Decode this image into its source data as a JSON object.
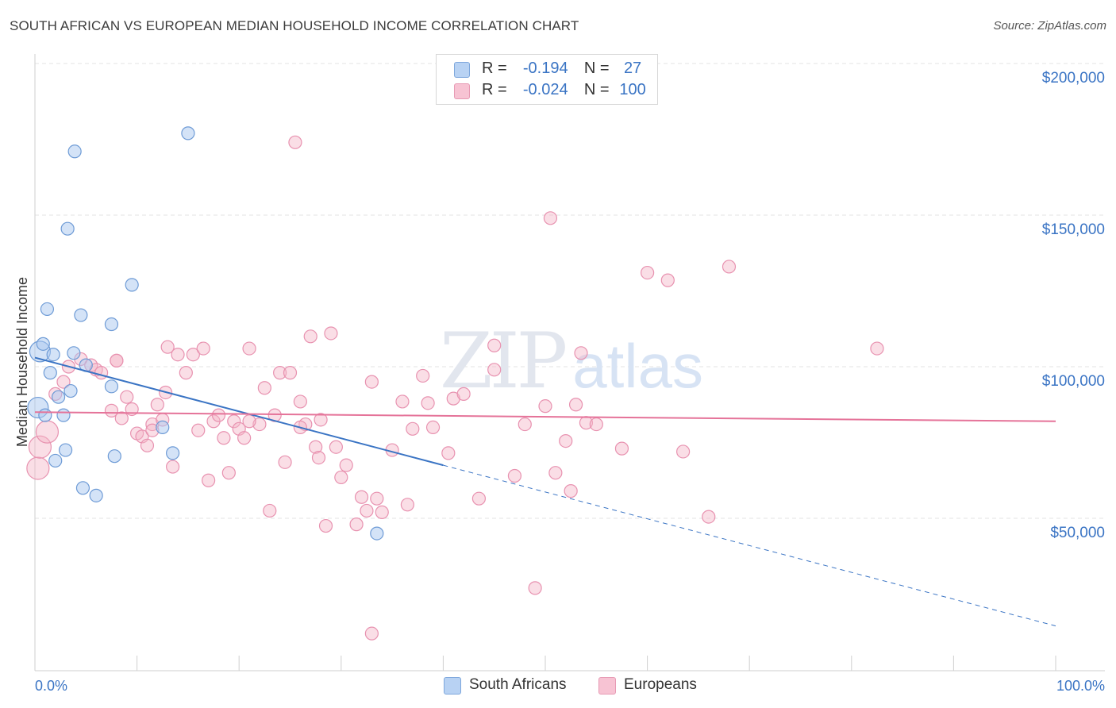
{
  "title": "SOUTH AFRICAN VS EUROPEAN MEDIAN HOUSEHOLD INCOME CORRELATION CHART",
  "source": "Source: ZipAtlas.com",
  "legend": {
    "rows": [
      {
        "r_label": "R =",
        "r_value": "-0.194",
        "n_label": "N =",
        "n_value": "27"
      },
      {
        "r_label": "R =",
        "r_value": "-0.024",
        "n_label": "N =",
        "n_value": "100"
      }
    ]
  },
  "bottom_legend": {
    "south_africans": "South Africans",
    "europeans": "Europeans"
  },
  "colors": {
    "blue": "#3a74c4",
    "blue_fill": "#a9c8f0",
    "pink": "#e57399",
    "pink_fill": "#f5b5c8"
  },
  "chart_data": {
    "type": "scatter",
    "title": "SOUTH AFRICAN VS EUROPEAN MEDIAN HOUSEHOLD INCOME CORRELATION CHART",
    "xlabel": "",
    "ylabel": "Median Household Income",
    "xlim": [
      0,
      100
    ],
    "ylim": [
      8000,
      210000
    ],
    "x_tick_labels": [
      "0.0%",
      "100.0%"
    ],
    "y_ticks": [
      50000,
      100000,
      150000,
      200000
    ],
    "y_tick_labels": [
      "$50,000",
      "$100,000",
      "$150,000",
      "$200,000"
    ],
    "watermark": "ZIPatlas",
    "series": [
      {
        "name": "South Africans",
        "r": -0.194,
        "n": 27,
        "points": [
          [
            0.3,
            86500
          ],
          [
            0.5,
            105000
          ],
          [
            0.8,
            107500
          ],
          [
            1.2,
            119000
          ],
          [
            1.5,
            98000
          ],
          [
            1.8,
            104000
          ],
          [
            2.0,
            69000
          ],
          [
            2.3,
            90000
          ],
          [
            2.8,
            84000
          ],
          [
            3.0,
            72500
          ],
          [
            3.2,
            145500
          ],
          [
            3.5,
            92000
          ],
          [
            3.8,
            104500
          ],
          [
            3.9,
            171000
          ],
          [
            4.5,
            117000
          ],
          [
            4.7,
            60000
          ],
          [
            5.0,
            100500
          ],
          [
            6.0,
            57500
          ],
          [
            7.5,
            114000
          ],
          [
            7.5,
            93500
          ],
          [
            7.8,
            70500
          ],
          [
            9.5,
            127000
          ],
          [
            12.5,
            80000
          ],
          [
            13.5,
            71500
          ],
          [
            15.0,
            177000
          ],
          [
            33.5,
            45000
          ],
          [
            1.0,
            84000
          ]
        ],
        "trend": {
          "x0": 0,
          "y0": 103000,
          "x1": 40,
          "y1": 67500,
          "dashed_to_x": 100,
          "dashed_to_y": 14500
        }
      },
      {
        "name": "Europeans",
        "r": -0.024,
        "n": 100,
        "points": [
          [
            0.3,
            66500
          ],
          [
            0.5,
            73500
          ],
          [
            1.2,
            78500
          ],
          [
            2.0,
            91000
          ],
          [
            2.8,
            95000
          ],
          [
            3.3,
            100000
          ],
          [
            4.5,
            102500
          ],
          [
            5.5,
            100500
          ],
          [
            6.0,
            99000
          ],
          [
            6.5,
            98000
          ],
          [
            7.5,
            85500
          ],
          [
            8.0,
            102000
          ],
          [
            8.5,
            83000
          ],
          [
            9.0,
            90000
          ],
          [
            9.5,
            86000
          ],
          [
            10.0,
            78000
          ],
          [
            10.5,
            77000
          ],
          [
            11.0,
            74000
          ],
          [
            11.5,
            81000
          ],
          [
            12.0,
            87500
          ],
          [
            12.5,
            82500
          ],
          [
            12.8,
            91500
          ],
          [
            13.0,
            106500
          ],
          [
            13.5,
            67000
          ],
          [
            14.0,
            104000
          ],
          [
            14.8,
            98000
          ],
          [
            15.5,
            104000
          ],
          [
            16.0,
            79000
          ],
          [
            16.5,
            106000
          ],
          [
            17.0,
            62500
          ],
          [
            17.5,
            82000
          ],
          [
            18.0,
            84000
          ],
          [
            18.5,
            76500
          ],
          [
            19.0,
            65000
          ],
          [
            19.5,
            82000
          ],
          [
            20.0,
            79500
          ],
          [
            20.5,
            76500
          ],
          [
            21.0,
            106000
          ],
          [
            22.0,
            81000
          ],
          [
            22.5,
            93000
          ],
          [
            23.0,
            52500
          ],
          [
            23.5,
            84000
          ],
          [
            24.0,
            98000
          ],
          [
            24.5,
            68500
          ],
          [
            25.0,
            98000
          ],
          [
            25.5,
            174000
          ],
          [
            26.0,
            88500
          ],
          [
            26.5,
            81000
          ],
          [
            27.0,
            110000
          ],
          [
            27.5,
            73500
          ],
          [
            27.8,
            70000
          ],
          [
            28.0,
            82500
          ],
          [
            28.5,
            47500
          ],
          [
            29.0,
            111000
          ],
          [
            29.5,
            73500
          ],
          [
            30.0,
            63500
          ],
          [
            30.5,
            67500
          ],
          [
            31.5,
            48000
          ],
          [
            32.0,
            57000
          ],
          [
            32.5,
            52500
          ],
          [
            33.0,
            95000
          ],
          [
            33.5,
            56500
          ],
          [
            34.0,
            52000
          ],
          [
            35.0,
            72500
          ],
          [
            36.0,
            88500
          ],
          [
            36.5,
            54500
          ],
          [
            37.0,
            79500
          ],
          [
            38.0,
            97000
          ],
          [
            38.5,
            88000
          ],
          [
            39.0,
            80000
          ],
          [
            40.5,
            71500
          ],
          [
            41.0,
            89500
          ],
          [
            42.0,
            91000
          ],
          [
            43.5,
            56500
          ],
          [
            45.0,
            107000
          ],
          [
            45.0,
            99000
          ],
          [
            47.0,
            64000
          ],
          [
            48.0,
            81000
          ],
          [
            49.0,
            27000
          ],
          [
            50.0,
            87000
          ],
          [
            50.5,
            149000
          ],
          [
            51.0,
            65000
          ],
          [
            52.0,
            75500
          ],
          [
            52.5,
            59000
          ],
          [
            53.0,
            87500
          ],
          [
            53.5,
            104500
          ],
          [
            54.0,
            81500
          ],
          [
            55.0,
            81000
          ],
          [
            57.5,
            73000
          ],
          [
            60.0,
            131000
          ],
          [
            62.0,
            128500
          ],
          [
            63.5,
            72000
          ],
          [
            66.0,
            50500
          ],
          [
            68.0,
            133000
          ],
          [
            82.5,
            106000
          ],
          [
            8.0,
            102000
          ],
          [
            11.5,
            79000
          ],
          [
            21.0,
            82000
          ],
          [
            33.0,
            12000
          ],
          [
            26.0,
            80000
          ]
        ],
        "trend": {
          "x0": 0,
          "y0": 85000,
          "x1": 100,
          "y1": 82000
        }
      }
    ]
  }
}
